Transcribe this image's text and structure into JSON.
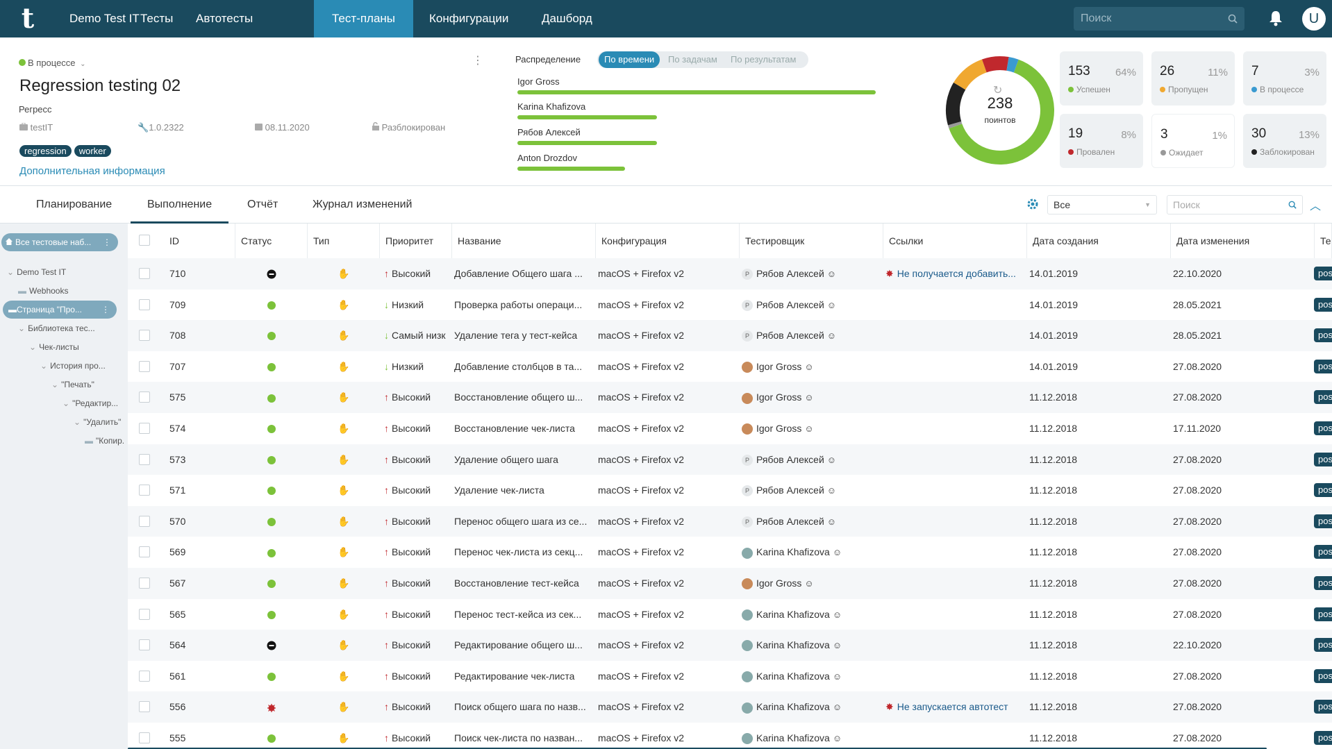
{
  "topbar": {
    "logo": "t",
    "project": "Demo Test IT",
    "nav": [
      "Тесты",
      "Автотесты",
      "Тест-планы",
      "Конфигурации",
      "Дашборд"
    ],
    "search_placeholder": "Поиск",
    "user_initial": "U"
  },
  "plan": {
    "status": "В процессе",
    "title": "Regression testing 02",
    "type": "Регресс",
    "product": "testIT",
    "build": "1.0.2322",
    "date": "08.11.2020",
    "lock_status": "Разблокирован",
    "tags": [
      "regression",
      "worker"
    ],
    "more_info": "Дополнительная информация"
  },
  "distribution": {
    "label": "Распределение",
    "tabs": [
      "По времени",
      "По задачам",
      "По результатам"
    ],
    "people": [
      {
        "name": "Igor Gross",
        "share": 1.0
      },
      {
        "name": "Karina Khafizova",
        "share": 0.39
      },
      {
        "name": "Рябов Алексей",
        "share": 0.39
      },
      {
        "name": "Anton Drozdov",
        "share": 0.3
      }
    ]
  },
  "donut": {
    "total": "238",
    "unit": "поинтов",
    "segments": [
      {
        "label": "Успешен",
        "value": 64,
        "color": "#7cc23a"
      },
      {
        "label": "Заблокирован",
        "value": 13,
        "color": "#222222"
      },
      {
        "label": "Пропущен",
        "value": 11,
        "color": "#f0a830"
      },
      {
        "label": "Провален",
        "value": 8,
        "color": "#c0282d"
      },
      {
        "label": "В процессе",
        "value": 3,
        "color": "#3a9ad0"
      },
      {
        "label": "Ожидает",
        "value": 1,
        "color": "#999999"
      }
    ]
  },
  "stats": [
    {
      "num": "153",
      "pct": "64%",
      "label": "Успешен",
      "color": "#7cc23a"
    },
    {
      "num": "26",
      "pct": "11%",
      "label": "Пропущен",
      "color": "#f0a830"
    },
    {
      "num": "7",
      "pct": "3%",
      "label": "В процессе",
      "color": "#3a9ad0"
    },
    {
      "num": "19",
      "pct": "8%",
      "label": "Провален",
      "color": "#c0282d"
    },
    {
      "num": "3",
      "pct": "1%",
      "label": "Ожидает",
      "color": "#999999"
    },
    {
      "num": "30",
      "pct": "13%",
      "label": "Заблокирован",
      "color": "#222222"
    }
  ],
  "tabs": [
    "Планирование",
    "Выполнение",
    "Отчёт",
    "Журнал изменений"
  ],
  "filter": {
    "value": "Все",
    "search_placeholder": "Поиск"
  },
  "sidebar": {
    "root": "Все тестовые наб...",
    "items": [
      {
        "label": "Demo Test IT",
        "indent": 0,
        "chevron": true
      },
      {
        "label": "Webhooks",
        "indent": 1,
        "folder": true
      },
      {
        "label": "Страница \"Про...",
        "indent": 1,
        "folder": true,
        "selected": true
      },
      {
        "label": "Библиотека тес...",
        "indent": 1,
        "chevron": true
      },
      {
        "label": "Чек-листы",
        "indent": 2,
        "chevron": true
      },
      {
        "label": "История про...",
        "indent": 3,
        "chevron": true
      },
      {
        "label": "\"Печать\"",
        "indent": 4,
        "chevron": true
      },
      {
        "label": "\"Редактир...",
        "indent": 5,
        "chevron": true
      },
      {
        "label": "\"Удалить\"",
        "indent": 6,
        "chevron": true
      },
      {
        "label": "\"Копир...",
        "indent": 7,
        "folder": true
      }
    ]
  },
  "table": {
    "columns": [
      "ID",
      "Статус",
      "Тип",
      "Приоритет",
      "Название",
      "Конфигурация",
      "Тестировщик",
      "Ссылки",
      "Дата создания",
      "Дата изменения",
      "Тег"
    ],
    "rows": [
      {
        "id": "710",
        "status": "blocked",
        "priority": "Высокий",
        "dir": "up",
        "name": "Добавление Общего шага ...",
        "config": "macOS + Firefox v2",
        "tester": "Рябов Алексей",
        "av": "r",
        "link": "Не получается добавить...",
        "created": "14.01.2019",
        "modified": "22.10.2020",
        "tag": "pos"
      },
      {
        "id": "709",
        "status": "passed",
        "priority": "Низкий",
        "dir": "down",
        "name": "Проверка работы операци...",
        "config": "macOS + Firefox v2",
        "tester": "Рябов Алексей",
        "av": "r",
        "link": "",
        "created": "14.01.2019",
        "modified": "28.05.2021",
        "tag": "pos"
      },
      {
        "id": "708",
        "status": "passed",
        "priority": "Самый низк",
        "dir": "down",
        "name": "Удаление тега у тест-кейса",
        "config": "macOS + Firefox v2",
        "tester": "Рябов Алексей",
        "av": "r",
        "link": "",
        "created": "14.01.2019",
        "modified": "28.05.2021",
        "tag": "pos"
      },
      {
        "id": "707",
        "status": "passed",
        "priority": "Низкий",
        "dir": "down",
        "name": "Добавление столбцов в та...",
        "config": "macOS + Firefox v2",
        "tester": "Igor Gross",
        "av": "i",
        "link": "",
        "created": "14.01.2019",
        "modified": "27.08.2020",
        "tag": "pos"
      },
      {
        "id": "575",
        "status": "passed",
        "priority": "Высокий",
        "dir": "up",
        "name": "Восстановление общего ш...",
        "config": "macOS + Firefox v2",
        "tester": "Igor Gross",
        "av": "i",
        "link": "",
        "created": "11.12.2018",
        "modified": "27.08.2020",
        "tag": "pos"
      },
      {
        "id": "574",
        "status": "passed",
        "priority": "Высокий",
        "dir": "up",
        "name": "Восстановление чек-листа",
        "config": "macOS + Firefox v2",
        "tester": "Igor Gross",
        "av": "i",
        "link": "",
        "created": "11.12.2018",
        "modified": "17.11.2020",
        "tag": "pos"
      },
      {
        "id": "573",
        "status": "passed",
        "priority": "Высокий",
        "dir": "up",
        "name": "Удаление общего шага",
        "config": "macOS + Firefox v2",
        "tester": "Рябов Алексей",
        "av": "r",
        "link": "",
        "created": "11.12.2018",
        "modified": "27.08.2020",
        "tag": "pos"
      },
      {
        "id": "571",
        "status": "passed",
        "priority": "Высокий",
        "dir": "up",
        "name": "Удаление чек-листа",
        "config": "macOS + Firefox v2",
        "tester": "Рябов Алексей",
        "av": "r",
        "link": "",
        "created": "11.12.2018",
        "modified": "27.08.2020",
        "tag": "pos"
      },
      {
        "id": "570",
        "status": "passed",
        "priority": "Высокий",
        "dir": "up",
        "name": "Перенос общего шага из се...",
        "config": "macOS + Firefox v2",
        "tester": "Рябов Алексей",
        "av": "r",
        "link": "",
        "created": "11.12.2018",
        "modified": "27.08.2020",
        "tag": "pos"
      },
      {
        "id": "569",
        "status": "passed",
        "priority": "Высокий",
        "dir": "up",
        "name": "Перенос чек-листа из секц...",
        "config": "macOS + Firefox v2",
        "tester": "Karina Khafizova",
        "av": "k",
        "link": "",
        "created": "11.12.2018",
        "modified": "27.08.2020",
        "tag": "pos"
      },
      {
        "id": "567",
        "status": "passed",
        "priority": "Высокий",
        "dir": "up",
        "name": "Восстановление тест-кейса",
        "config": "macOS + Firefox v2",
        "tester": "Igor Gross",
        "av": "i",
        "link": "",
        "created": "11.12.2018",
        "modified": "27.08.2020",
        "tag": "pos"
      },
      {
        "id": "565",
        "status": "passed",
        "priority": "Высокий",
        "dir": "up",
        "name": "Перенос тест-кейса из сек...",
        "config": "macOS + Firefox v2",
        "tester": "Karina Khafizova",
        "av": "k",
        "link": "",
        "created": "11.12.2018",
        "modified": "27.08.2020",
        "tag": "pos"
      },
      {
        "id": "564",
        "status": "blocked",
        "priority": "Высокий",
        "dir": "up",
        "name": "Редактирование общего ш...",
        "config": "macOS + Firefox v2",
        "tester": "Karina Khafizova",
        "av": "k",
        "link": "",
        "created": "11.12.2018",
        "modified": "22.10.2020",
        "tag": "pos"
      },
      {
        "id": "561",
        "status": "passed",
        "priority": "Высокий",
        "dir": "up",
        "name": "Редактирование чек-листа",
        "config": "macOS + Firefox v2",
        "tester": "Karina Khafizova",
        "av": "k",
        "link": "",
        "created": "11.12.2018",
        "modified": "27.08.2020",
        "tag": "pos"
      },
      {
        "id": "556",
        "status": "failed",
        "priority": "Высокий",
        "dir": "up",
        "name": "Поиск общего шага по назв...",
        "config": "macOS + Firefox v2",
        "tester": "Karina Khafizova",
        "av": "k",
        "link": "Не запускается автотест",
        "created": "11.12.2018",
        "modified": "27.08.2020",
        "tag": "pos"
      },
      {
        "id": "555",
        "status": "passed",
        "priority": "Высокий",
        "dir": "up",
        "name": "Поиск чек-листа по назван...",
        "config": "macOS + Firefox v2",
        "tester": "Karina Khafizova",
        "av": "k",
        "link": "",
        "created": "11.12.2018",
        "modified": "27.08.2020",
        "tag": "pos"
      }
    ]
  }
}
